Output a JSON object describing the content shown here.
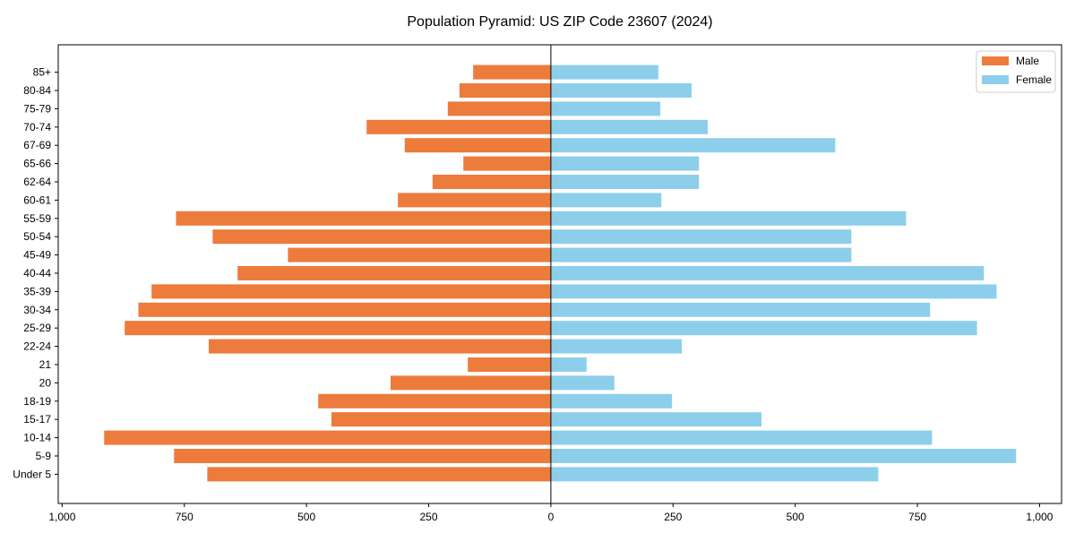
{
  "chart_data": {
    "type": "bar",
    "orientation": "horizontal",
    "title": "Population Pyramid: US ZIP Code 23607 (2024)",
    "xlabel": "",
    "ylabel": "",
    "categories": [
      "Under 5",
      "5-9",
      "10-14",
      "15-17",
      "18-19",
      "20",
      "21",
      "22-24",
      "25-29",
      "30-34",
      "35-39",
      "40-44",
      "45-49",
      "50-54",
      "55-59",
      "60-61",
      "62-64",
      "65-66",
      "67-69",
      "70-74",
      "75-79",
      "80-84",
      "85+"
    ],
    "series": [
      {
        "name": "Male",
        "color": "#ED7B3B",
        "values": [
          703,
          771,
          914,
          449,
          476,
          328,
          170,
          700,
          872,
          844,
          817,
          641,
          538,
          692,
          767,
          313,
          242,
          179,
          299,
          377,
          211,
          187,
          159
        ]
      },
      {
        "name": "Female",
        "color": "#8DCFEB",
        "values": [
          670,
          952,
          780,
          431,
          248,
          130,
          73,
          268,
          872,
          776,
          912,
          886,
          615,
          615,
          727,
          226,
          303,
          303,
          582,
          321,
          224,
          288,
          220
        ]
      }
    ],
    "xticks": [
      -1000,
      -750,
      -500,
      -250,
      0,
      250,
      500,
      750,
      1000
    ],
    "xtick_labels": [
      "1,000",
      "750",
      "500",
      "250",
      "0",
      "250",
      "500",
      "750",
      "1,000"
    ],
    "xlim": [
      -1008,
      1045
    ],
    "ylim": [
      -1.6,
      23.5
    ],
    "legend_position": "top-right",
    "grid": false
  }
}
